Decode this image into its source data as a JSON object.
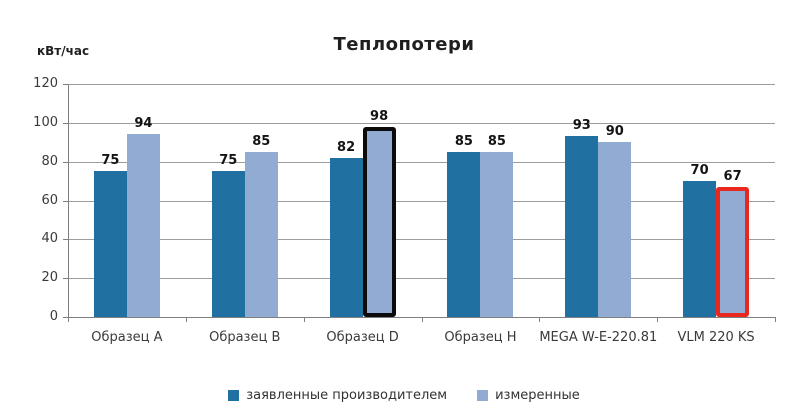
{
  "chart_data": {
    "type": "bar",
    "title": "Теплопотери",
    "ylabel": "кВт/час",
    "xlabel": "",
    "categories": [
      "Образец A",
      "Образец B",
      "Образец D",
      "Образец H",
      "MEGA W-E-220.81",
      "VLM 220 KS"
    ],
    "series": [
      {
        "name": "заявленные производителем",
        "color": "#2170A2",
        "values": [
          75,
          75,
          82,
          85,
          93,
          70
        ]
      },
      {
        "name": "измеренные",
        "color": "#92ABD2",
        "values": [
          94,
          85,
          98,
          85,
          90,
          67
        ]
      }
    ],
    "bar_outlines": [
      {
        "series_index": 1,
        "category_index": 2,
        "color": "#0b0b0b"
      },
      {
        "series_index": 1,
        "category_index": 5,
        "color": "#e8281e"
      }
    ],
    "ylim": [
      0,
      120
    ],
    "yticks": [
      0,
      20,
      40,
      60,
      80,
      100,
      120
    ],
    "grid": true,
    "legend_position": "bottom",
    "gridline_color": "#9d9d9d",
    "axis_color": "#7f7f7f"
  }
}
